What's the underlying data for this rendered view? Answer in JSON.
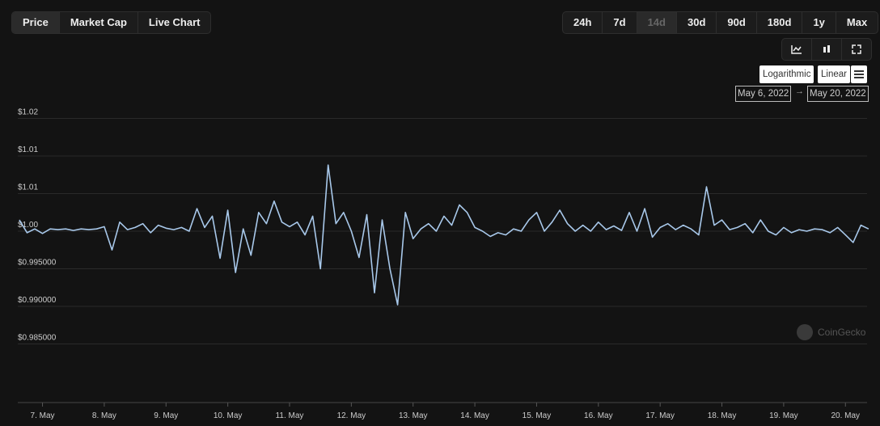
{
  "views": [
    "Price",
    "Market Cap",
    "Live Chart"
  ],
  "ranges": [
    "24h",
    "7d",
    "14d",
    "30d",
    "90d",
    "180d",
    "1y",
    "Max"
  ],
  "scales": [
    "Logarithmic",
    "Linear"
  ],
  "date_from": "May 6, 2022",
  "date_to": "May 20, 2022",
  "watermark": "CoinGecko",
  "chart_data": {
    "type": "line",
    "color": "#a8c8ea",
    "grid": true,
    "xlim": [
      6.6,
      20.35
    ],
    "ylim": [
      0.9835,
      1.0165
    ],
    "xticks": [
      {
        "value": 7,
        "label": "7. May"
      },
      {
        "value": 8,
        "label": "8. May"
      },
      {
        "value": 9,
        "label": "9. May"
      },
      {
        "value": 10,
        "label": "10. May"
      },
      {
        "value": 11,
        "label": "11. May"
      },
      {
        "value": 12,
        "label": "12. May"
      },
      {
        "value": 13,
        "label": "13. May"
      },
      {
        "value": 14,
        "label": "14. May"
      },
      {
        "value": 15,
        "label": "15. May"
      },
      {
        "value": 16,
        "label": "16. May"
      },
      {
        "value": 17,
        "label": "17. May"
      },
      {
        "value": 18,
        "label": "18. May"
      },
      {
        "value": 19,
        "label": "19. May"
      },
      {
        "value": 20,
        "label": "20. May"
      }
    ],
    "yticks": [
      {
        "value": 0.985,
        "label": "$0.985000"
      },
      {
        "value": 0.99,
        "label": "$0.990000"
      },
      {
        "value": 0.995,
        "label": "$0.995000"
      },
      {
        "value": 1.0,
        "label": "$1.00"
      },
      {
        "value": 1.005,
        "label": "$1.01"
      },
      {
        "value": 1.01,
        "label": "$1.01"
      },
      {
        "value": 1.015,
        "label": "$1.02"
      }
    ],
    "x": [
      6.625,
      6.75,
      6.875,
      7,
      7.125,
      7.25,
      7.375,
      7.5,
      7.625,
      7.75,
      7.875,
      8,
      8.125,
      8.25,
      8.375,
      8.5,
      8.625,
      8.75,
      8.875,
      9,
      9.125,
      9.25,
      9.375,
      9.5,
      9.625,
      9.75,
      9.875,
      10,
      10.125,
      10.25,
      10.375,
      10.5,
      10.625,
      10.75,
      10.875,
      11,
      11.125,
      11.25,
      11.375,
      11.5,
      11.625,
      11.75,
      11.875,
      12,
      12.125,
      12.25,
      12.375,
      12.5,
      12.625,
      12.75,
      12.875,
      13,
      13.125,
      13.25,
      13.375,
      13.5,
      13.625,
      13.75,
      13.875,
      14,
      14.125,
      14.25,
      14.375,
      14.5,
      14.625,
      14.75,
      14.875,
      15,
      15.125,
      15.25,
      15.375,
      15.5,
      15.625,
      15.75,
      15.875,
      16,
      16.125,
      16.25,
      16.375,
      16.5,
      16.625,
      16.75,
      16.875,
      17,
      17.125,
      17.25,
      17.375,
      17.5,
      17.625,
      17.75,
      17.875,
      18,
      18.125,
      18.25,
      18.375,
      18.5,
      18.625,
      18.75,
      18.875,
      19,
      19.125,
      19.25,
      19.375,
      19.5,
      19.625,
      19.75,
      19.875,
      20,
      20.125,
      20.25,
      20.375
    ],
    "values": [
      1.0015,
      0.9998,
      1.0003,
      0.9997,
      1.0003,
      1.0002,
      1.0003,
      1.0001,
      1.0003,
      1.0002,
      1.0003,
      1.0006,
      0.9975,
      1.0012,
      1.0002,
      1.0005,
      1.001,
      0.9998,
      1.0008,
      1.0004,
      1.0002,
      1.0005,
      1.0,
      1.003,
      1.0005,
      1.002,
      0.9964,
      1.0028,
      0.9945,
      1.0003,
      0.9968,
      1.0025,
      1.001,
      1.004,
      1.0012,
      1.0006,
      1.0012,
      0.9995,
      1.002,
      0.995,
      1.0088,
      1.001,
      1.0025,
      1.0,
      0.9965,
      1.0022,
      0.9918,
      1.0015,
      0.995,
      0.9902,
      1.0025,
      0.999,
      1.0003,
      1.001,
      1.0,
      1.002,
      1.0008,
      1.0035,
      1.0025,
      1.0005,
      1.0,
      0.9993,
      0.9998,
      0.9995,
      1.0003,
      1.0,
      1.0015,
      1.0025,
      1.0,
      1.0012,
      1.0028,
      1.001,
      1.0,
      1.0008,
      1.0,
      1.0012,
      1.0002,
      1.0007,
      1.0001,
      1.0025,
      1.0,
      1.003,
      0.9992,
      1.0005,
      1.001,
      1.0002,
      1.0008,
      1.0003,
      0.9995,
      1.0059,
      1.0008,
      1.0015,
      1.0002,
      1.0005,
      1.001,
      0.9998,
      1.0015,
      1.0,
      0.9995,
      1.0005,
      0.9998,
      1.0002,
      1.0,
      1.0003,
      1.0002,
      0.9998,
      1.0005,
      0.9995,
      0.9985,
      1.0008,
      1.0003
    ]
  }
}
